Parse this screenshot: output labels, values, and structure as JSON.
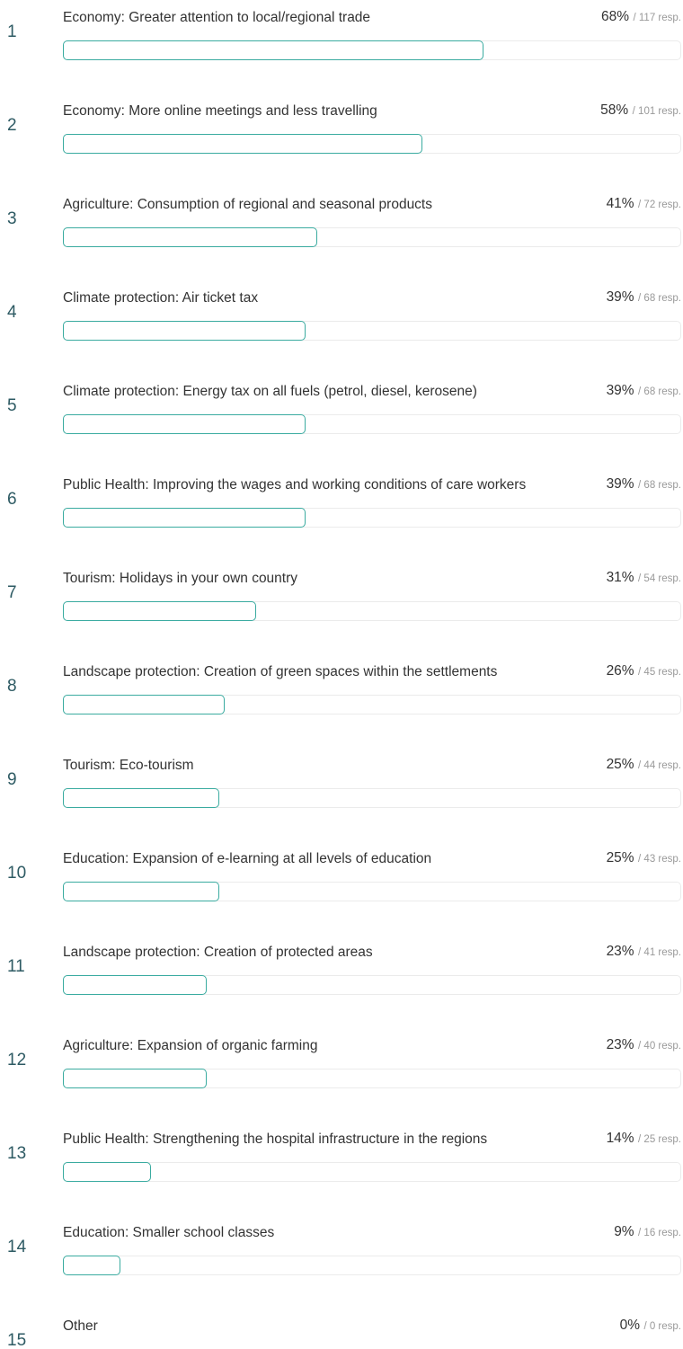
{
  "chart_data": {
    "type": "bar",
    "ranks": [
      1,
      2,
      3,
      4,
      5,
      6,
      7,
      8,
      9,
      10,
      11,
      12,
      13,
      14,
      15
    ],
    "categories": [
      "Economy: Greater attention to local/regional trade",
      "Economy: More online meetings and less travelling",
      "Agriculture: Consumption of regional and seasonal products",
      "Climate protection: Air ticket tax",
      "Climate protection: Energy tax on all fuels (petrol, diesel, kerosene)",
      "Public Health: Improving the wages and working conditions of care workers",
      "Tourism: Holidays in your own country",
      "Landscape protection: Creation of green spaces within the settlements",
      "Tourism: Eco-tourism",
      "Education: Expansion of e-learning at all levels of education",
      "Landscape protection: Creation of protected areas",
      "Agriculture: Expansion of organic farming",
      "Public Health: Strengthening the hospital infrastructure in the regions",
      "Education: Smaller school classes",
      "Other"
    ],
    "values": [
      68,
      58,
      41,
      39,
      39,
      39,
      31,
      26,
      25,
      25,
      23,
      23,
      14,
      9,
      0
    ],
    "value_labels": [
      "68%",
      "58%",
      "41%",
      "39%",
      "39%",
      "39%",
      "31%",
      "26%",
      "25%",
      "25%",
      "23%",
      "23%",
      "14%",
      "9%",
      "0%"
    ],
    "response_labels": [
      "/ 117 resp.",
      "/ 101 resp.",
      "/ 72 resp.",
      "/ 68 resp.",
      "/ 68 resp.",
      "/ 68 resp.",
      "/ 54 resp.",
      "/ 45 resp.",
      "/ 44 resp.",
      "/ 43 resp.",
      "/ 41 resp.",
      "/ 40 resp.",
      "/ 25 resp.",
      "/ 16 resp.",
      "/ 0 resp."
    ],
    "xlim": [
      0,
      100
    ],
    "color": "#3aaba0"
  }
}
